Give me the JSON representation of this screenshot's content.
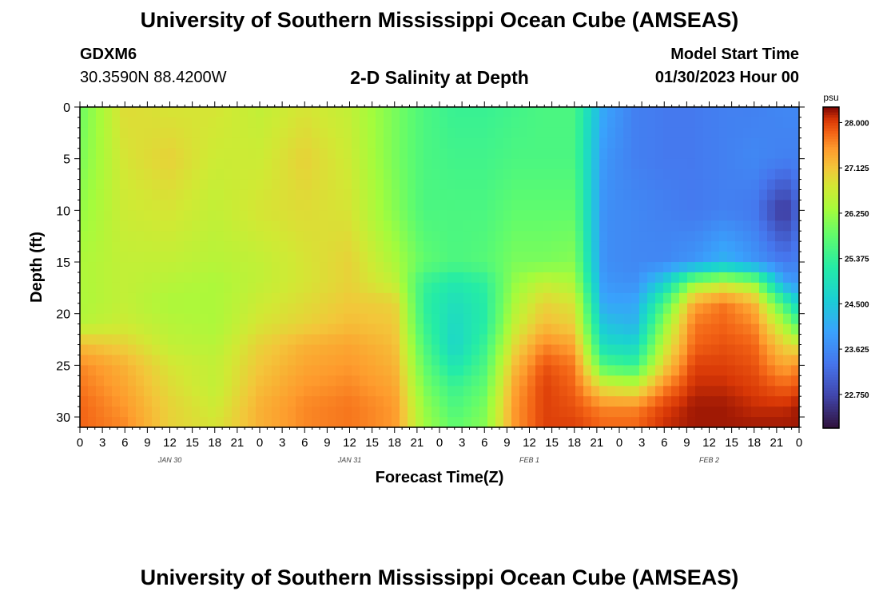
{
  "header": {
    "title": "University of Southern Mississippi Ocean Cube (AMSEAS)",
    "station": "GDXM6",
    "coords": "30.3590N  88.4200W",
    "subtitle": "2-D Salinity at Depth",
    "start_label": "Model Start Time",
    "start_value": "01/30/2023 Hour 00"
  },
  "footer": {
    "title": "University of Southern Mississippi Ocean Cube (AMSEAS)"
  },
  "chart_data": {
    "type": "heatmap",
    "title": "2-D Salinity at Depth",
    "xlabel": "Forecast Time(Z)",
    "ylabel": "Depth (ft)",
    "x_hours_range": [
      0,
      96
    ],
    "x_tick_labels": [
      "0",
      "3",
      "6",
      "9",
      "12",
      "15",
      "18",
      "21",
      "0",
      "3",
      "6",
      "9",
      "12",
      "15",
      "18",
      "21",
      "0",
      "3",
      "6",
      "9",
      "12",
      "15",
      "18",
      "21",
      "0",
      "3",
      "6",
      "9",
      "12",
      "15",
      "18",
      "21",
      "0"
    ],
    "date_labels": [
      {
        "label": "JAN 30",
        "hour": 12
      },
      {
        "label": "JAN 31",
        "hour": 36
      },
      {
        "label": "FEB 1",
        "hour": 60
      },
      {
        "label": "FEB 2",
        "hour": 84
      }
    ],
    "y_range": [
      0,
      31
    ],
    "y_ticks": [
      0,
      5,
      10,
      15,
      20,
      25,
      30
    ],
    "colorbar": {
      "unit": "psu",
      "min": 22.1,
      "max": 28.3,
      "ticks": [
        "28.000",
        "27.125",
        "26.250",
        "25.375",
        "24.500",
        "23.625",
        "22.750"
      ]
    },
    "grid": {
      "depths_ft": [
        0,
        5,
        10,
        15,
        17,
        19,
        21,
        23,
        25,
        27,
        29,
        31
      ],
      "hours": [
        0,
        6,
        12,
        18,
        24,
        30,
        36,
        42,
        46,
        50,
        54,
        58,
        62,
        66,
        70,
        74,
        78,
        82,
        86,
        90,
        94,
        96
      ],
      "values": [
        [
          25.9,
          26.9,
          26.8,
          26.8,
          26.6,
          26.8,
          26.6,
          26.0,
          25.6,
          25.4,
          25.4,
          25.5,
          25.6,
          25.6,
          24.0,
          23.5,
          23.4,
          23.4,
          23.5,
          23.5,
          23.6,
          23.6
        ],
        [
          26.0,
          26.8,
          27.0,
          26.7,
          26.7,
          27.0,
          26.7,
          26.0,
          25.6,
          25.5,
          25.5,
          25.6,
          25.6,
          25.6,
          23.8,
          23.5,
          23.4,
          23.4,
          23.5,
          23.6,
          23.5,
          23.5
        ],
        [
          26.2,
          26.7,
          26.8,
          26.6,
          26.8,
          26.9,
          26.8,
          26.1,
          25.6,
          25.6,
          25.6,
          25.8,
          25.8,
          25.8,
          23.7,
          23.6,
          23.5,
          23.4,
          23.5,
          23.4,
          22.5,
          23.2
        ],
        [
          26.4,
          26.6,
          26.6,
          26.5,
          26.6,
          26.8,
          27.0,
          26.4,
          25.8,
          25.6,
          25.7,
          26.0,
          26.0,
          26.1,
          23.7,
          23.6,
          23.6,
          23.8,
          24.2,
          23.8,
          23.4,
          23.5
        ],
        [
          26.4,
          26.6,
          26.5,
          26.4,
          26.6,
          26.8,
          27.0,
          26.6,
          25.4,
          25.1,
          25.3,
          26.2,
          26.6,
          26.4,
          23.8,
          23.7,
          24.6,
          26.2,
          26.6,
          26.2,
          24.0,
          23.8
        ],
        [
          26.4,
          26.6,
          26.4,
          26.4,
          26.7,
          26.9,
          27.1,
          27.0,
          25.3,
          24.9,
          25.2,
          26.4,
          27.0,
          26.8,
          24.0,
          24.0,
          25.6,
          27.4,
          27.7,
          27.3,
          25.5,
          24.6
        ],
        [
          26.5,
          26.7,
          26.5,
          26.4,
          26.8,
          27.0,
          27.2,
          27.1,
          25.4,
          24.8,
          25.2,
          26.6,
          27.2,
          27.0,
          24.4,
          24.2,
          26.2,
          27.7,
          27.8,
          27.6,
          26.4,
          25.6
        ],
        [
          27.2,
          27.0,
          26.6,
          26.5,
          27.0,
          27.3,
          27.4,
          27.2,
          25.6,
          24.7,
          25.4,
          26.9,
          27.6,
          27.4,
          24.8,
          24.7,
          26.6,
          27.8,
          27.9,
          27.8,
          27.0,
          26.8
        ],
        [
          27.6,
          27.3,
          26.8,
          26.6,
          27.1,
          27.4,
          27.5,
          27.3,
          25.8,
          25.0,
          25.6,
          27.2,
          27.9,
          27.7,
          25.6,
          25.4,
          27.0,
          28.0,
          28.0,
          27.9,
          27.4,
          27.6
        ],
        [
          27.7,
          27.4,
          26.9,
          26.6,
          27.2,
          27.5,
          27.6,
          27.4,
          26.0,
          25.4,
          25.8,
          27.4,
          28.0,
          27.8,
          26.8,
          26.6,
          27.6,
          28.1,
          28.1,
          28.0,
          27.8,
          27.9
        ],
        [
          27.8,
          27.5,
          27.0,
          26.7,
          27.3,
          27.6,
          27.7,
          27.5,
          26.2,
          25.6,
          26.0,
          27.5,
          28.0,
          27.9,
          27.6,
          27.6,
          28.0,
          28.2,
          28.2,
          28.1,
          28.1,
          28.2
        ],
        [
          27.8,
          27.6,
          27.0,
          26.8,
          27.3,
          27.6,
          27.7,
          27.5,
          26.3,
          25.8,
          26.1,
          27.5,
          28.0,
          28.0,
          27.8,
          27.8,
          28.1,
          28.2,
          28.2,
          28.2,
          28.2,
          28.2
        ]
      ]
    }
  }
}
